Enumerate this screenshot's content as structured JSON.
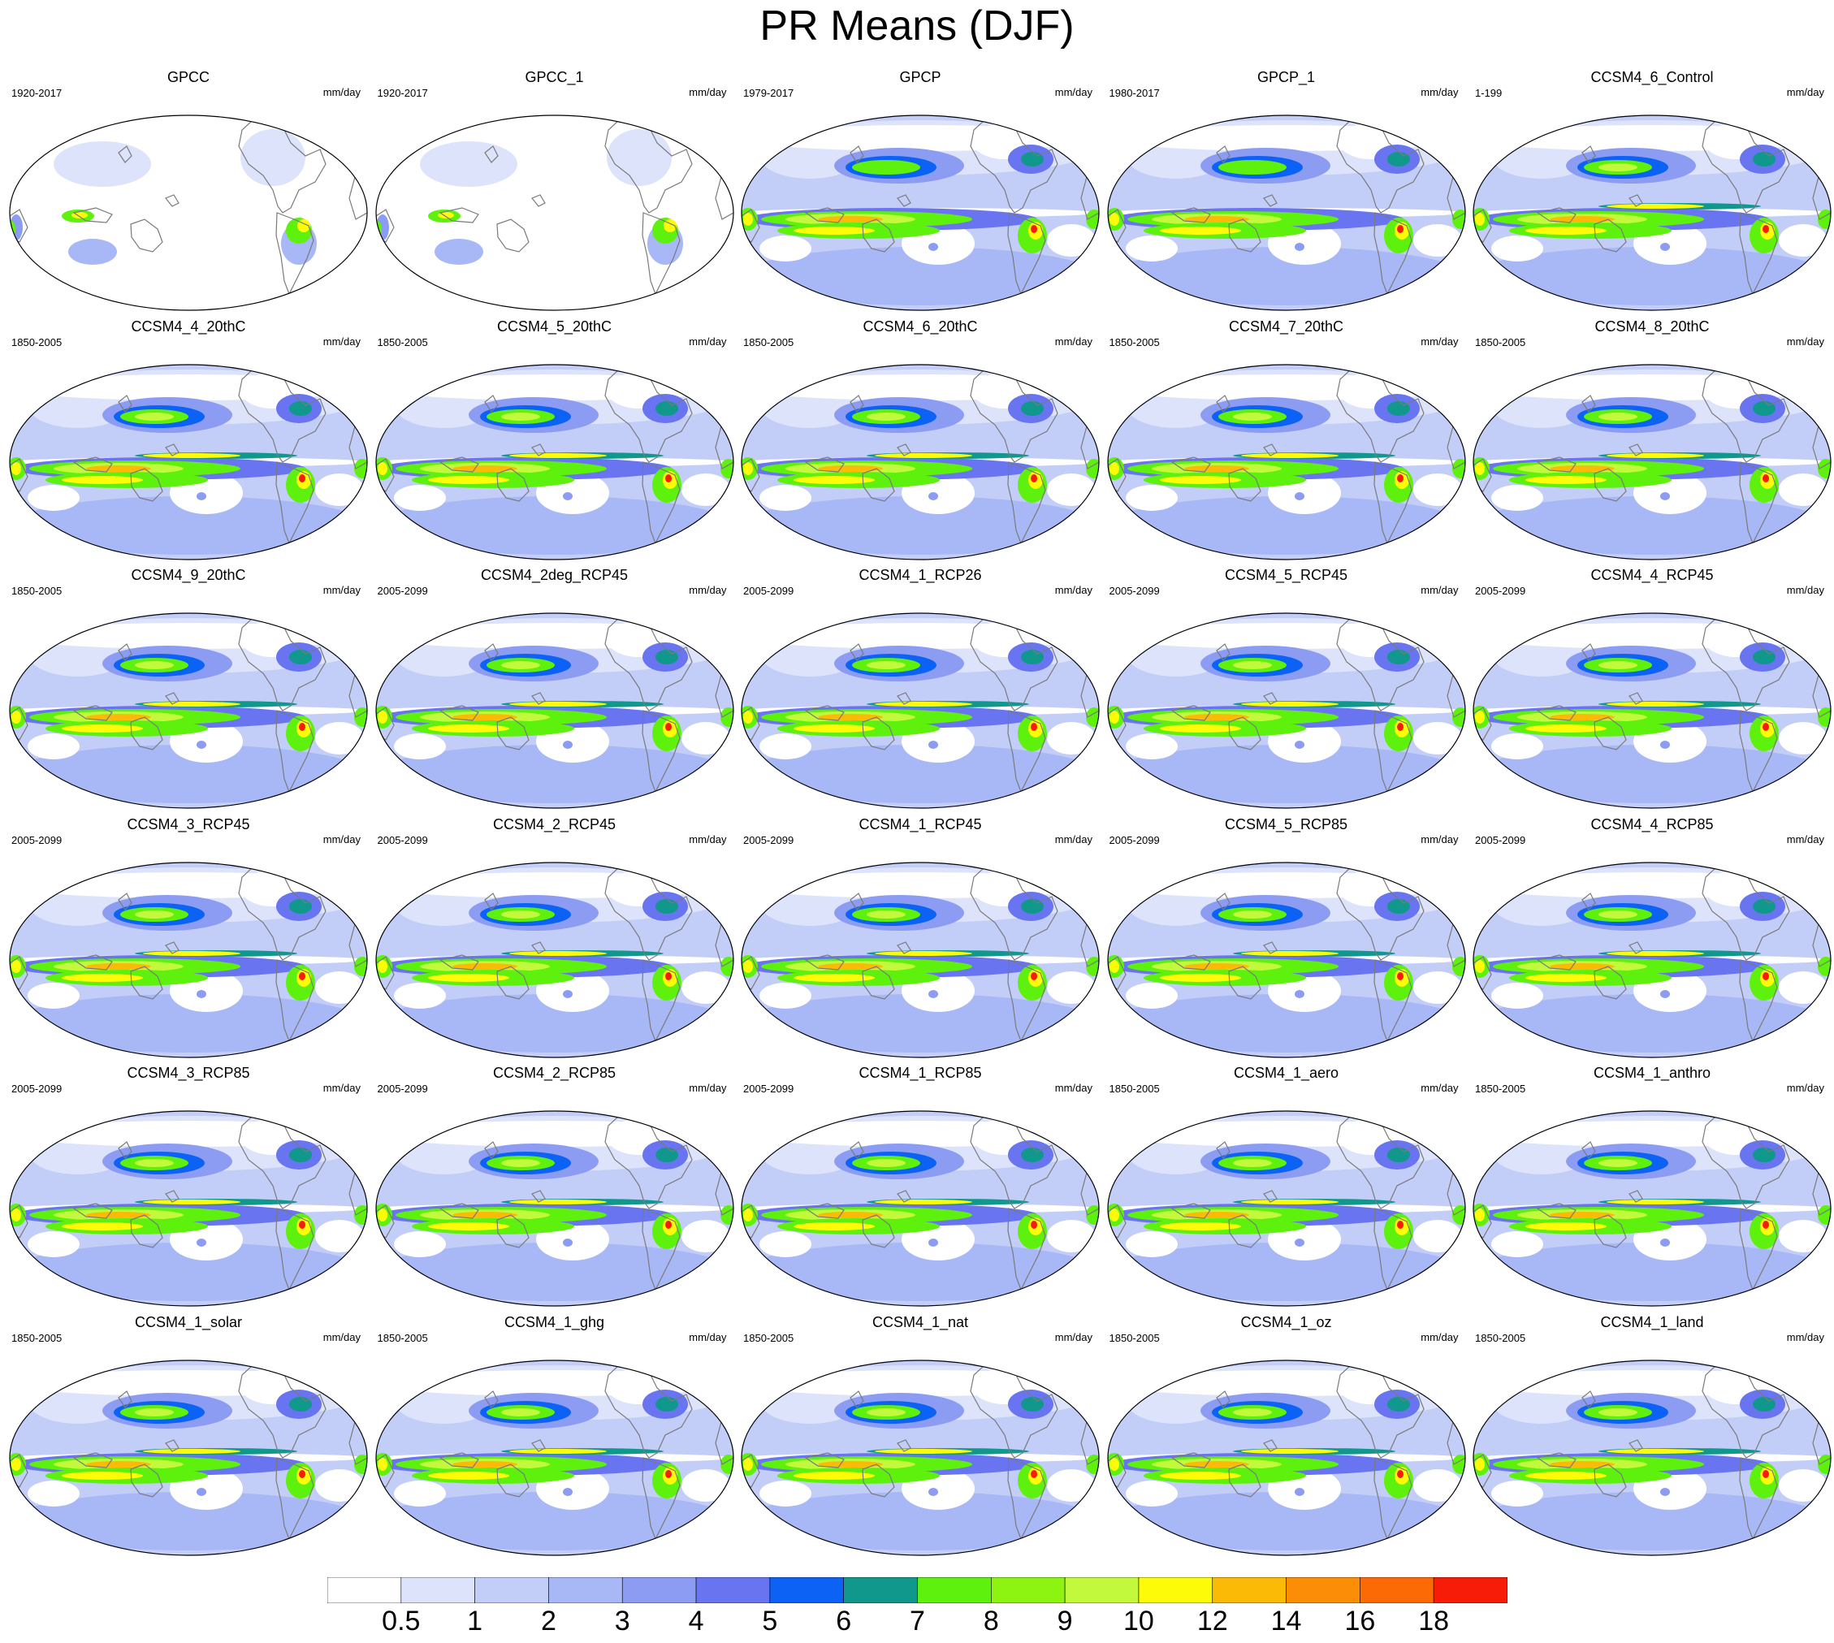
{
  "title": "PR Means (DJF)",
  "units": "mm/day",
  "colorbar": {
    "levels": [
      "0.5",
      "1",
      "2",
      "3",
      "4",
      "5",
      "6",
      "7",
      "8",
      "9",
      "10",
      "12",
      "14",
      "16",
      "18"
    ],
    "colors": [
      "#ffffff",
      "#dde3fb",
      "#c2cdf8",
      "#a8b8f6",
      "#8c9cf2",
      "#6874f0",
      "#0b62f4",
      "#10988c",
      "#5ef10e",
      "#8df412",
      "#c2f93c",
      "#fdfb08",
      "#fbba06",
      "#fb8e06",
      "#fb6a04",
      "#f71c08"
    ]
  },
  "panels": [
    {
      "name": "GPCC",
      "period": "1920-2017",
      "kind": "obs_land"
    },
    {
      "name": "GPCC_1",
      "period": "1920-2017",
      "kind": "obs_land"
    },
    {
      "name": "GPCP",
      "period": "1979-2017",
      "kind": "obs"
    },
    {
      "name": "GPCP_1",
      "period": "1980-2017",
      "kind": "obs"
    },
    {
      "name": "CCSM4_6_Control",
      "period": "1-199",
      "kind": "model"
    },
    {
      "name": "CCSM4_4_20thC",
      "period": "1850-2005",
      "kind": "model"
    },
    {
      "name": "CCSM4_5_20thC",
      "period": "1850-2005",
      "kind": "model"
    },
    {
      "name": "CCSM4_6_20thC",
      "period": "1850-2005",
      "kind": "model"
    },
    {
      "name": "CCSM4_7_20thC",
      "period": "1850-2005",
      "kind": "model"
    },
    {
      "name": "CCSM4_8_20thC",
      "period": "1850-2005",
      "kind": "model"
    },
    {
      "name": "CCSM4_9_20thC",
      "period": "1850-2005",
      "kind": "model"
    },
    {
      "name": "CCSM4_2deg_RCP45",
      "period": "2005-2099",
      "kind": "model"
    },
    {
      "name": "CCSM4_1_RCP26",
      "period": "2005-2099",
      "kind": "model"
    },
    {
      "name": "CCSM4_5_RCP45",
      "period": "2005-2099",
      "kind": "model"
    },
    {
      "name": "CCSM4_4_RCP45",
      "period": "2005-2099",
      "kind": "model"
    },
    {
      "name": "CCSM4_3_RCP45",
      "period": "2005-2099",
      "kind": "model"
    },
    {
      "name": "CCSM4_2_RCP45",
      "period": "2005-2099",
      "kind": "model"
    },
    {
      "name": "CCSM4_1_RCP45",
      "period": "2005-2099",
      "kind": "model"
    },
    {
      "name": "CCSM4_5_RCP85",
      "period": "2005-2099",
      "kind": "model"
    },
    {
      "name": "CCSM4_4_RCP85",
      "period": "2005-2099",
      "kind": "model"
    },
    {
      "name": "CCSM4_3_RCP85",
      "period": "2005-2099",
      "kind": "model"
    },
    {
      "name": "CCSM4_2_RCP85",
      "period": "2005-2099",
      "kind": "model"
    },
    {
      "name": "CCSM4_1_RCP85",
      "period": "2005-2099",
      "kind": "model"
    },
    {
      "name": "CCSM4_1_aero",
      "period": "1850-2005",
      "kind": "model"
    },
    {
      "name": "CCSM4_1_anthro",
      "period": "1850-2005",
      "kind": "model"
    },
    {
      "name": "CCSM4_1_solar",
      "period": "1850-2005",
      "kind": "model"
    },
    {
      "name": "CCSM4_1_ghg",
      "period": "1850-2005",
      "kind": "model"
    },
    {
      "name": "CCSM4_1_nat",
      "period": "1850-2005",
      "kind": "model"
    },
    {
      "name": "CCSM4_1_oz",
      "period": "1850-2005",
      "kind": "model"
    },
    {
      "name": "CCSM4_1_land",
      "period": "1850-2005",
      "kind": "model"
    }
  ]
}
